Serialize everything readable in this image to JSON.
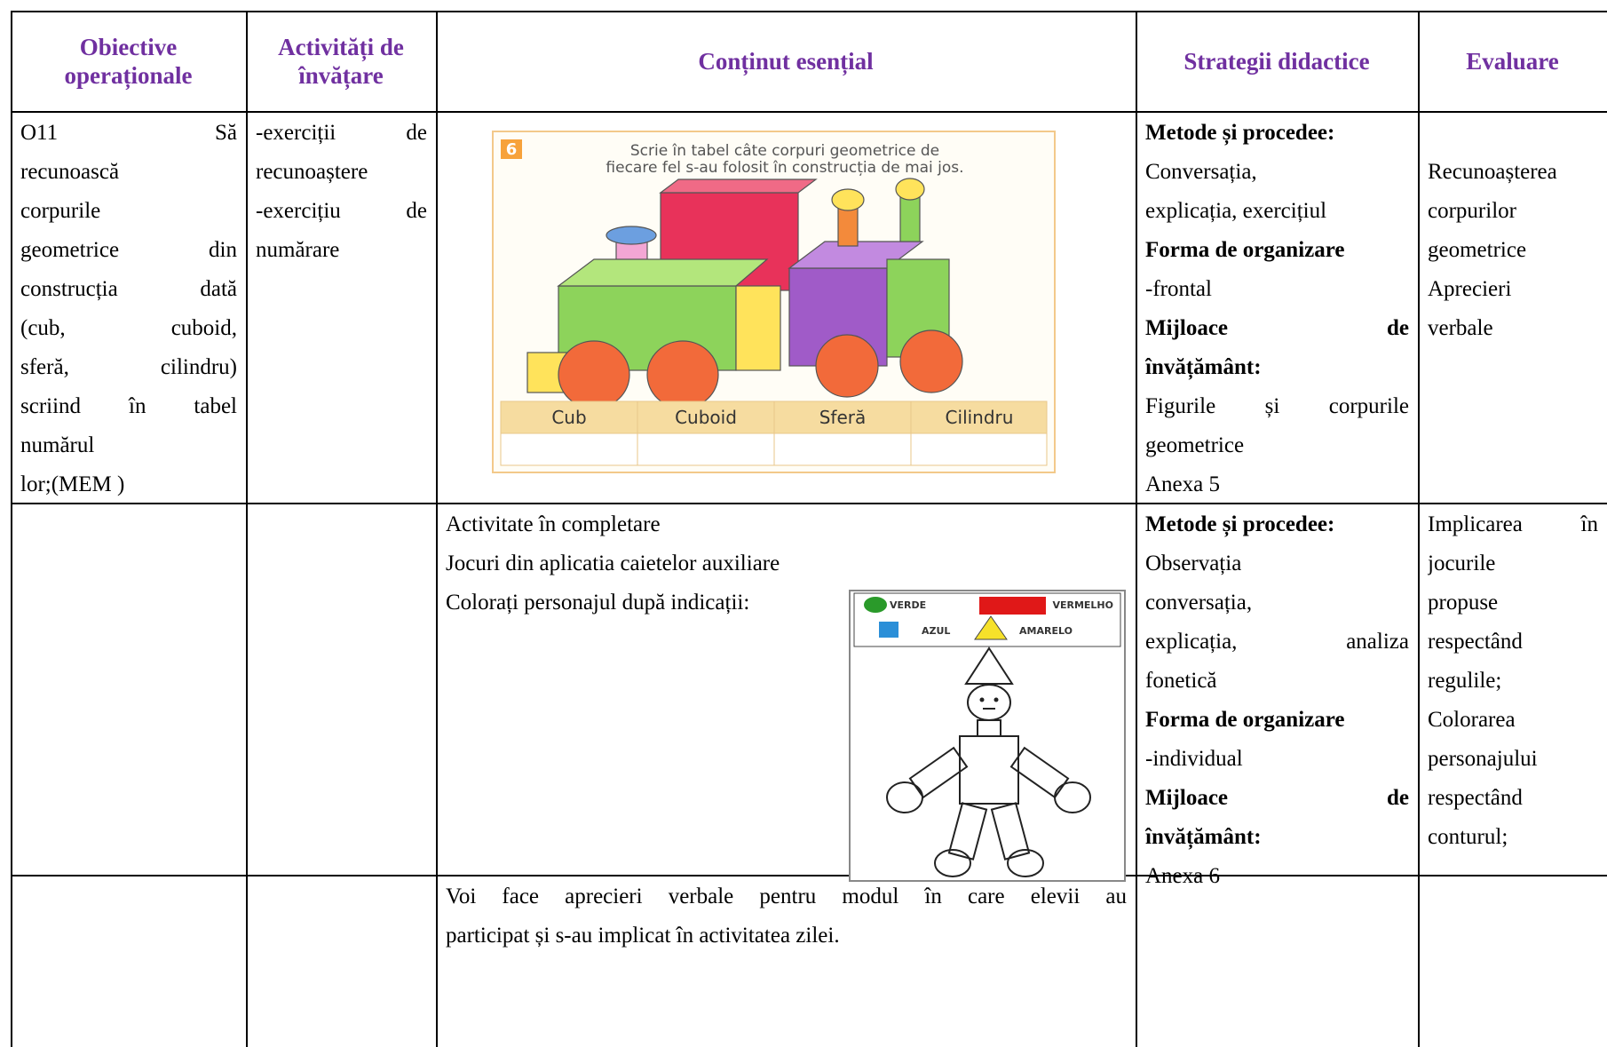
{
  "header": [
    "Obiective operaționale",
    "Activități de învățare",
    "Conținut esențial",
    "Strategii didactice",
    "Evaluare"
  ],
  "rows": [
    {
      "objectives": [
        "O11 Să",
        "recunoască",
        "corpurile",
        "geometrice din",
        "construcția dată",
        "(cub, cuboid,",
        "sferă, cilindru)",
        "scriind în tabel",
        "numărul",
        "lor;(MEM )"
      ],
      "activities": [
        "-exerciții de",
        "recunoaștere",
        "-exercițiu de",
        "numărare"
      ],
      "content": [],
      "exercise": {
        "number": "6",
        "instruction": [
          "Scrie în tabel câte corpuri geometrice de",
          "fiecare fel s-au folosit în construcția de mai jos."
        ],
        "columns": [
          "Cub",
          "Cuboid",
          "Sferă",
          "Cilindru"
        ]
      },
      "strategies": [
        "Metode și procedee:",
        "Conversația,",
        "explicația, exercițiul",
        "Forma de organizare",
        "-frontal",
        "Mijloace de",
        "învățământ:",
        "Figurile și corpurile",
        "geometrice",
        "Anexa 5"
      ],
      "evaluation": [
        "Recunoașterea",
        "corpurilor",
        "geometrice",
        "Aprecieri",
        "verbale"
      ]
    },
    {
      "objectives": [],
      "activities": [],
      "content": [
        "Activitate în completare",
        "Jocuri din aplicatia caietelor auxiliare",
        "Colorați personajul după indicații:"
      ],
      "legend": [
        "VERDE",
        "VERMELHO",
        "AZUL",
        "AMARELO"
      ],
      "strategies": [
        "Metode și procedee:",
        "Observația",
        "conversația,",
        "explicația, analiza",
        "fonetică",
        "Forma de organizare",
        "-individual",
        "Mijloace de",
        "învățământ:",
        "Anexa 6"
      ],
      "evaluation": [
        "Implicarea în",
        "jocurile",
        "propuse",
        "respectând",
        "regulile;",
        "Colorarea",
        "personajului",
        "respectând",
        "conturul;"
      ]
    },
    {
      "objectives": [],
      "activities": [],
      "content": [
        "Voi face aprecieri verbale pentru modul în care elevii au",
        "participat și s-au implicat în activitatea zilei."
      ],
      "strategies": [],
      "evaluation": []
    }
  ]
}
